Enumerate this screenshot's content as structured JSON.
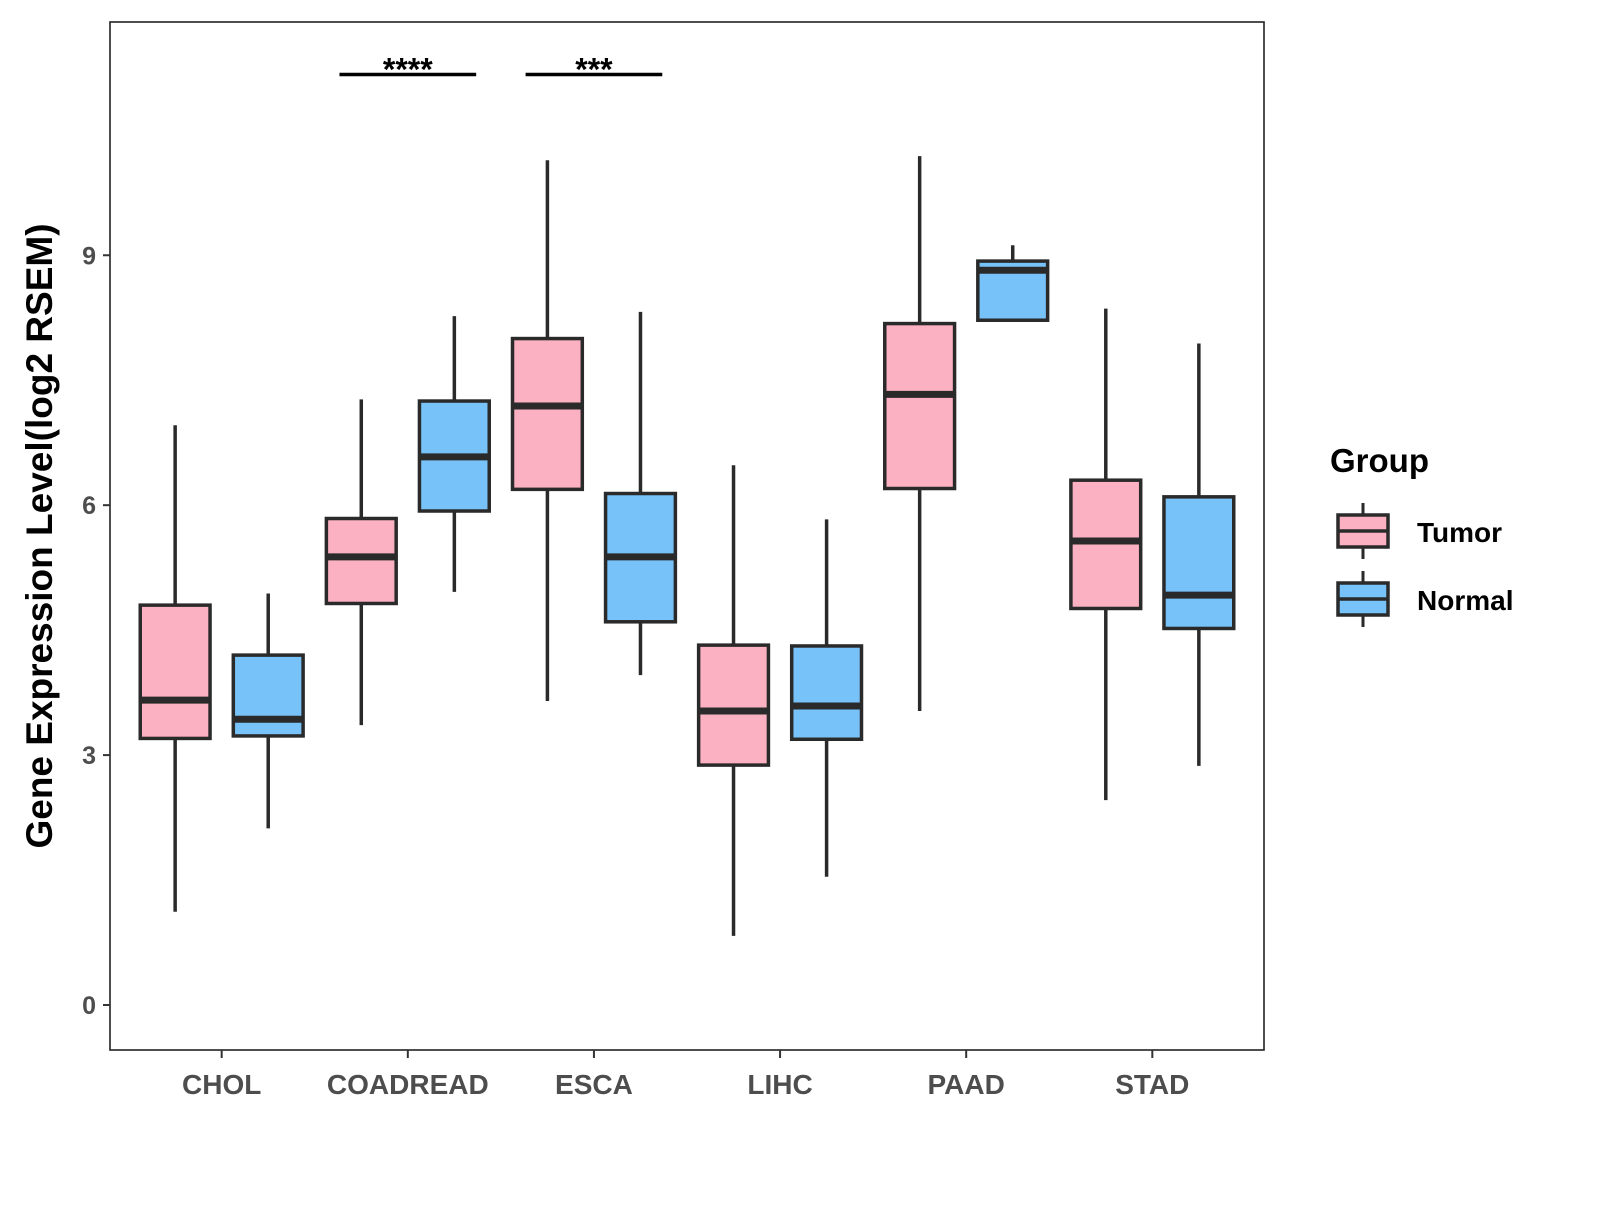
{
  "chart_data": {
    "type": "boxplot",
    "title": "",
    "xlabel": "",
    "ylabel": "Gene Expression Level(log2 RSEM)",
    "ylim": [
      -0.54,
      11.8
    ],
    "yticks": [
      0,
      3,
      6,
      9
    ],
    "grid": false,
    "categories": [
      "CHOL",
      "COADREAD",
      "ESCA",
      "LIHC",
      "PAAD",
      "STAD"
    ],
    "legend": {
      "title": "Group",
      "placement": "right"
    },
    "series": [
      {
        "name": "Tumor",
        "color": "#FBB1C2",
        "boxes": [
          {
            "min": 1.12,
            "q1": 3.2,
            "median": 3.66,
            "q3": 4.8,
            "max": 6.96
          },
          {
            "min": 3.36,
            "q1": 4.82,
            "median": 5.38,
            "q3": 5.84,
            "max": 7.27
          },
          {
            "min": 3.65,
            "q1": 6.19,
            "median": 7.19,
            "q3": 8.0,
            "max": 10.14
          },
          {
            "min": 0.83,
            "q1": 2.88,
            "median": 3.53,
            "q3": 4.32,
            "max": 6.48
          },
          {
            "min": 3.53,
            "q1": 6.2,
            "median": 7.33,
            "q3": 8.18,
            "max": 10.19
          },
          {
            "min": 2.46,
            "q1": 4.76,
            "median": 5.57,
            "q3": 6.3,
            "max": 8.36
          }
        ]
      },
      {
        "name": "Normal",
        "color": "#77C2F8",
        "boxes": [
          {
            "min": 2.12,
            "q1": 3.23,
            "median": 3.43,
            "q3": 4.2,
            "max": 4.94
          },
          {
            "min": 4.96,
            "q1": 5.93,
            "median": 6.58,
            "q3": 7.25,
            "max": 8.27
          },
          {
            "min": 3.96,
            "q1": 4.6,
            "median": 5.38,
            "q3": 6.14,
            "max": 8.32
          },
          {
            "min": 1.54,
            "q1": 3.19,
            "median": 3.59,
            "q3": 4.31,
            "max": 5.83
          },
          {
            "min": 8.22,
            "q1": 8.22,
            "median": 8.82,
            "q3": 8.93,
            "max": 9.12
          },
          {
            "min": 2.87,
            "q1": 4.52,
            "median": 4.92,
            "q3": 6.1,
            "max": 7.94
          }
        ]
      }
    ],
    "annotations": [
      {
        "category": "COADREAD",
        "label": "****",
        "y": 11.17
      },
      {
        "category": "ESCA",
        "label": "***",
        "y": 11.17
      }
    ]
  }
}
